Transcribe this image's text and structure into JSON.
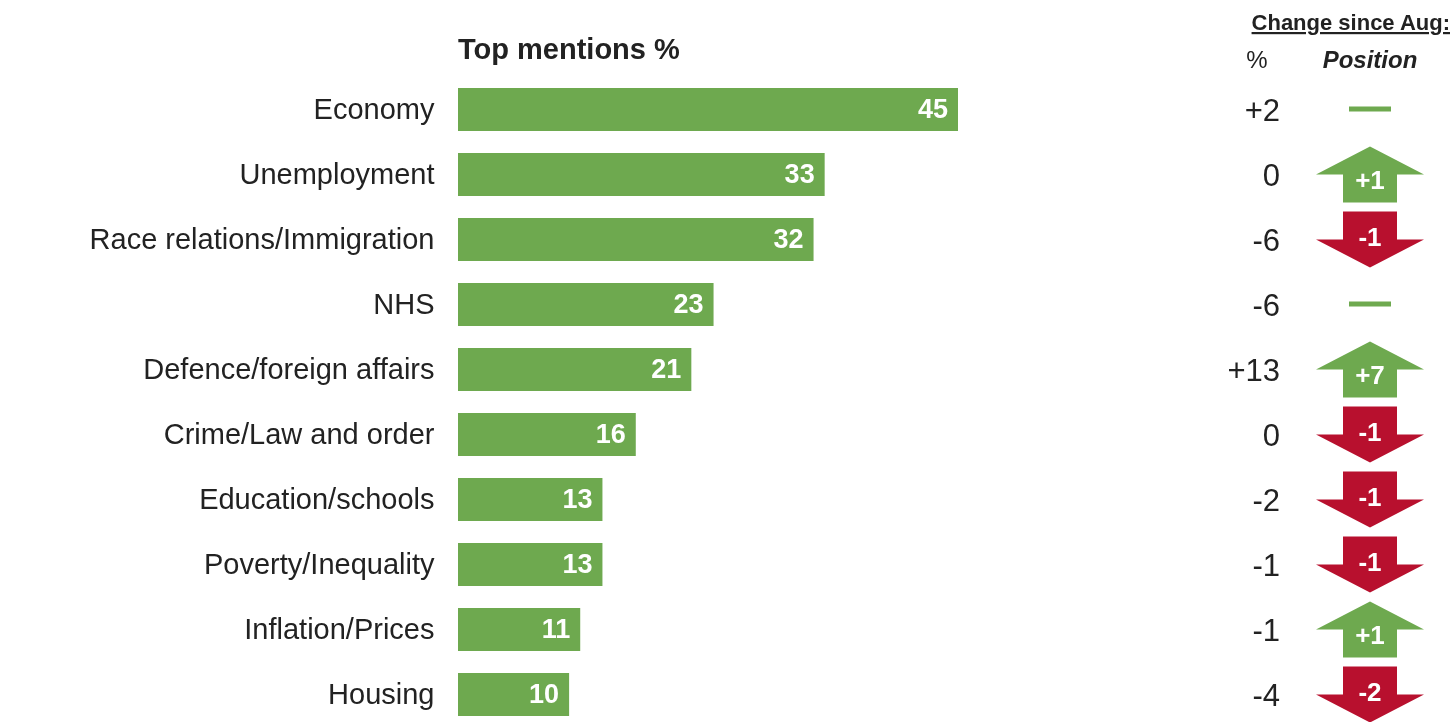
{
  "chart_data": [
    {
      "type": "bar",
      "orientation": "horizontal",
      "title": "Top mentions %",
      "categories": [
        "Economy",
        "Unemployment",
        "Race relations/Immigration",
        "NHS",
        "Defence/foreign affairs",
        "Crime/Law and order",
        "Education/schools",
        "Poverty/Inequality",
        "Inflation/Prices",
        "Housing"
      ],
      "values": [
        45,
        33,
        32,
        23,
        21,
        16,
        13,
        13,
        11,
        10
      ],
      "color": "#6ea94f",
      "data_labels": true
    },
    {
      "type": "other",
      "title": "Change since Aug:",
      "categories": [
        "%",
        "Position"
      ],
      "cell_labels": [
        [
          "+2",
          null
        ],
        [
          "0",
          "+1"
        ],
        [
          "-6",
          "-1"
        ],
        [
          "-6",
          null
        ],
        [
          "+13",
          "+7"
        ],
        [
          "0",
          "-1"
        ],
        [
          "-2",
          "-1"
        ],
        [
          "-1",
          "-1"
        ],
        [
          "-1",
          "+1"
        ],
        [
          "-4",
          "-2"
        ]
      ],
      "colors": [
        "#6ea94f",
        "#6ea94f",
        "#b8102e",
        "#6ea94f",
        "#6ea94f",
        "#b8102e",
        "#b8102e",
        "#b8102e",
        "#6ea94f",
        "#b8102e"
      ]
    }
  ]
}
